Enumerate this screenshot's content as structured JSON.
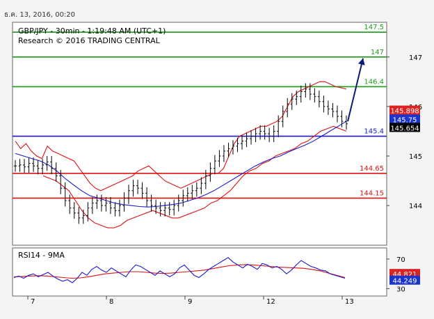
{
  "header": {
    "timestamp": "ธ.ค. 13, 2016, 00:20",
    "title": "GBP/JPY - 30min - 1:19:48 AM (UTC+1)",
    "research": "Research © 2016 TRADING CENTRAL"
  },
  "colors": {
    "green": "#1a9a1a",
    "red": "#dd1111",
    "blue": "#1a1acc",
    "navy": "#0b1a7a",
    "price_box_red": "#dd2222",
    "price_box_blue": "#1a35cc",
    "price_box_black": "#000000"
  },
  "chart_data": [
    {
      "type": "candlestick",
      "title": "GBP/JPY - 30min",
      "x_tick_labels": [
        "7",
        "8",
        "9",
        "12",
        "13"
      ],
      "y_tick_labels": [
        "147",
        "146",
        "145",
        "144"
      ],
      "y_ticks": [
        147,
        146,
        145,
        144
      ],
      "ylim": [
        143.2,
        147.7
      ],
      "levels": [
        {
          "value": 147.5,
          "label": "147.5",
          "color": "#1a9a1a"
        },
        {
          "value": 147.0,
          "label": "147",
          "color": "#1a9a1a"
        },
        {
          "value": 146.4,
          "label": "146.4",
          "color": "#1a9a1a"
        },
        {
          "value": 145.4,
          "label": "145.4",
          "color": "#1a1acc"
        },
        {
          "value": 144.65,
          "label": "144.65",
          "color": "#dd1111"
        },
        {
          "value": 144.15,
          "label": "144.15",
          "color": "#dd1111"
        }
      ],
      "price_tags": [
        {
          "value": 145.898,
          "label": "145.898",
          "color": "#dd2222"
        },
        {
          "value": 145.75,
          "label": "145.75",
          "color": "#1a35cc"
        },
        {
          "value": 145.654,
          "label": "145.654",
          "color": "#000000"
        }
      ],
      "projection": {
        "from": 145.7,
        "to": 147.0
      },
      "series": [
        {
          "name": "price",
          "values": [
            144.8,
            144.82,
            144.78,
            144.85,
            144.8,
            144.75,
            144.82,
            144.88,
            144.75,
            144.6,
            144.35,
            144.1,
            143.95,
            143.85,
            143.75,
            143.8,
            143.95,
            144.05,
            144.1,
            144.0,
            144.05,
            143.95,
            143.9,
            144.0,
            144.15,
            144.3,
            144.4,
            144.35,
            144.25,
            144.1,
            144.0,
            143.95,
            143.9,
            143.95,
            143.92,
            144.0,
            144.1,
            144.2,
            144.25,
            144.3,
            144.35,
            144.45,
            144.6,
            144.75,
            144.9,
            145.0,
            145.1,
            145.15,
            145.2,
            145.25,
            145.3,
            145.35,
            145.4,
            145.45,
            145.5,
            145.45,
            145.4,
            145.5,
            145.7,
            145.9,
            146.05,
            146.15,
            146.2,
            146.3,
            146.35,
            146.25,
            146.2,
            146.1,
            146.0,
            145.95,
            145.9,
            145.8,
            145.7,
            145.65
          ]
        },
        {
          "name": "bollinger-upper",
          "values": [
            145.3,
            145.15,
            145.25,
            145.1,
            145.0,
            144.95,
            145.2,
            145.1,
            145.05,
            145.0,
            144.95,
            144.9,
            144.75,
            144.6,
            144.45,
            144.35,
            144.3,
            144.35,
            144.4,
            144.45,
            144.5,
            144.55,
            144.6,
            144.7,
            144.75,
            144.8,
            144.7,
            144.6,
            144.5,
            144.45,
            144.4,
            144.35,
            144.4,
            144.45,
            144.5,
            144.55,
            144.6,
            144.65,
            144.65,
            144.75,
            145.0,
            145.25,
            145.4,
            145.45,
            145.5,
            145.55,
            145.6,
            145.6,
            145.65,
            145.7,
            145.8,
            146.0,
            146.2,
            146.3,
            146.35,
            146.4,
            146.45,
            146.5,
            146.5,
            146.45,
            146.4,
            146.38,
            146.35
          ]
        },
        {
          "name": "bollinger-lower",
          "values": [
            144.6,
            144.55,
            144.5,
            144.4,
            144.3,
            144.1,
            143.9,
            143.75,
            143.65,
            143.6,
            143.55,
            143.55,
            143.6,
            143.7,
            143.75,
            143.8,
            143.85,
            143.9,
            143.85,
            143.8,
            143.75,
            143.75,
            143.8,
            143.85,
            143.9,
            143.95,
            144.05,
            144.1,
            144.2,
            144.3,
            144.45,
            144.6,
            144.7,
            144.75,
            144.85,
            144.9,
            145.0,
            145.05,
            145.1,
            145.15,
            145.25,
            145.3,
            145.4,
            145.5,
            145.55,
            145.6,
            145.55,
            145.5
          ]
        },
        {
          "name": "moving-average",
          "values": [
            145.05,
            145.0,
            144.95,
            144.9,
            144.82,
            144.7,
            144.55,
            144.42,
            144.3,
            144.2,
            144.15,
            144.1,
            144.05,
            144.02,
            144.0,
            143.98,
            143.97,
            143.98,
            144.0,
            144.02,
            144.05,
            144.1,
            144.15,
            144.22,
            144.3,
            144.4,
            144.5,
            144.6,
            144.7,
            144.8,
            144.88,
            144.95,
            145.0,
            145.08,
            145.15,
            145.22,
            145.3,
            145.4,
            145.5,
            145.6,
            145.7
          ]
        }
      ]
    },
    {
      "type": "line",
      "title": "RSI14 - 9MA",
      "y_tick_labels": [
        "70",
        "30"
      ],
      "y_ticks": [
        70,
        30
      ],
      "ylim": [
        20,
        85
      ],
      "price_tags": [
        {
          "value": 44.821,
          "label": "44.821",
          "color": "#dd2222"
        },
        {
          "value": 44.249,
          "label": "44.249",
          "color": "#1a35cc"
        }
      ],
      "series": [
        {
          "name": "RSI14",
          "values": [
            45,
            47,
            44,
            48,
            50,
            46,
            49,
            52,
            47,
            43,
            40,
            42,
            38,
            44,
            52,
            48,
            56,
            60,
            55,
            52,
            58,
            54,
            50,
            46,
            55,
            62,
            60,
            56,
            52,
            48,
            54,
            50,
            46,
            50,
            58,
            62,
            55,
            48,
            45,
            50,
            56,
            60,
            64,
            68,
            72,
            66,
            62,
            58,
            63,
            60,
            56,
            64,
            62,
            58,
            60,
            56,
            50,
            55,
            62,
            68,
            64,
            60,
            58,
            55,
            54,
            50,
            48,
            46,
            44
          ]
        },
        {
          "name": "9MA",
          "values": [
            46,
            46.5,
            47,
            47.5,
            47,
            46,
            45,
            44,
            44.5,
            46,
            48,
            50,
            51,
            52,
            53,
            53,
            52,
            51,
            50.5,
            51,
            52,
            53,
            54,
            55,
            57,
            59,
            61,
            62,
            62.5,
            62,
            61,
            60,
            59,
            58.5,
            58,
            57.5,
            56,
            54,
            51,
            48,
            45
          ]
        }
      ]
    }
  ]
}
